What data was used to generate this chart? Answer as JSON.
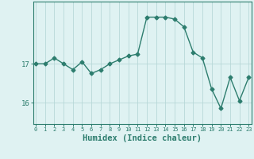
{
  "x": [
    0,
    1,
    2,
    3,
    4,
    5,
    6,
    7,
    8,
    9,
    10,
    11,
    12,
    13,
    14,
    15,
    16,
    17,
    18,
    19,
    20,
    21,
    22,
    23
  ],
  "y": [
    17.0,
    17.0,
    17.15,
    17.0,
    16.85,
    17.05,
    16.75,
    16.85,
    17.0,
    17.1,
    17.2,
    17.25,
    18.2,
    18.2,
    18.2,
    18.15,
    17.95,
    17.3,
    17.15,
    16.35,
    15.85,
    16.65,
    16.05,
    16.65
  ],
  "line_color": "#2d7d6e",
  "marker": "D",
  "marker_size": 2.5,
  "line_width": 1.0,
  "bg_color": "#dff2f2",
  "grid_color": "#b8d8d8",
  "xlabel": "Humidex (Indice chaleur)",
  "xlabel_fontsize": 7.5,
  "ytick_labels": [
    "16",
    "17"
  ],
  "ytick_values": [
    16,
    17
  ],
  "xlim": [
    -0.3,
    23.3
  ],
  "ylim": [
    15.45,
    18.6
  ],
  "xtick_labels": [
    "0",
    "1",
    "2",
    "3",
    "4",
    "5",
    "6",
    "7",
    "8",
    "9",
    "10",
    "11",
    "12",
    "13",
    "14",
    "15",
    "16",
    "17",
    "18",
    "19",
    "20",
    "21",
    "22",
    "23"
  ],
  "spine_color": "#2d7d6e",
  "tick_color": "#2d7d6e"
}
